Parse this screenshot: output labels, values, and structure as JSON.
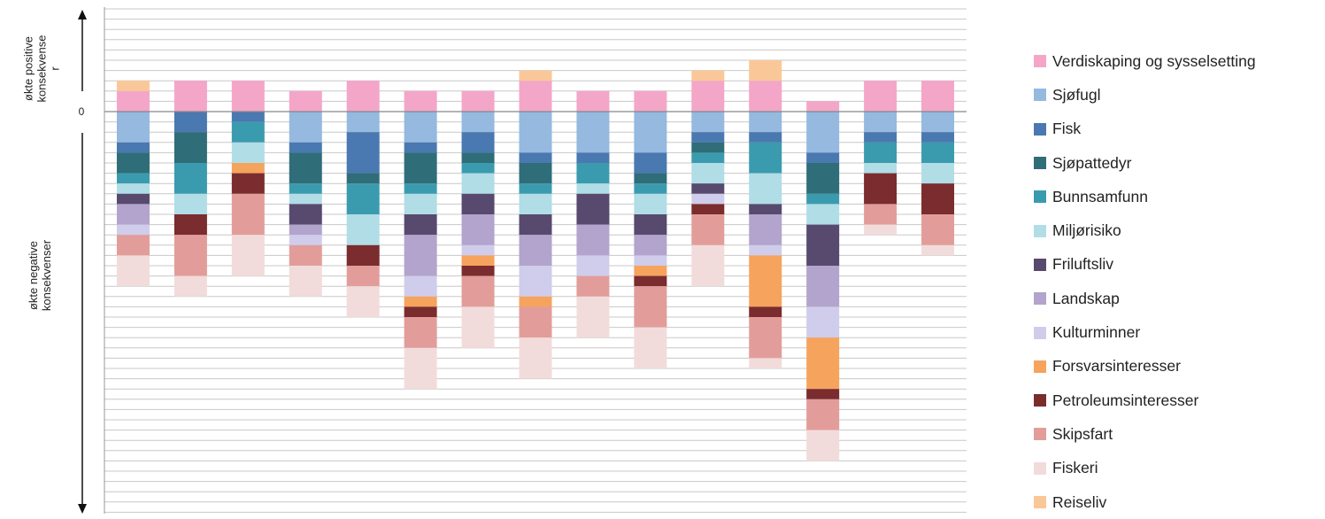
{
  "axis": {
    "positive_label_line1": "økte positive",
    "positive_label_line2": "konsekvense",
    "positive_label_line3": "r",
    "negative_label_line1": "økte negative",
    "negative_label_line2": "konsekvenser"
  },
  "chart_data": {
    "type": "bar",
    "stacked": true,
    "grid": true,
    "legend_position": "right",
    "ylim": [
      -39,
      10
    ],
    "yticks": [
      {
        "value": 0,
        "label": "0"
      }
    ],
    "categories": [
      "",
      "",
      "",
      "",
      "",
      "",
      "",
      "",
      "",
      "",
      "",
      "",
      "",
      "",
      ""
    ],
    "series": [
      {
        "name": "Verdiskaping og sysselsetting",
        "color": "#F4A6C8",
        "values": [
          2,
          3,
          3,
          2,
          3,
          2,
          2,
          3,
          2,
          2,
          3,
          3,
          1,
          3,
          3
        ]
      },
      {
        "name": "Reiseliv",
        "color": "#FAC898",
        "values": [
          1,
          0,
          0,
          0,
          0,
          0,
          0,
          1,
          0,
          0,
          1,
          2,
          0,
          0,
          0
        ]
      },
      {
        "name": "Sjøfugl",
        "color": "#95B9DF",
        "values": [
          -3,
          0,
          0,
          -3,
          -2,
          -3,
          -2,
          -4,
          -4,
          -4,
          -2,
          -2,
          -4,
          -2,
          -2
        ]
      },
      {
        "name": "Fisk",
        "color": "#4A78B0",
        "values": [
          -1,
          -2,
          -1,
          -1,
          -4,
          -1,
          -2,
          -1,
          -1,
          -2,
          -1,
          -1,
          -1,
          -1,
          -1
        ]
      },
      {
        "name": "Sjøpattedyr",
        "color": "#2F6D78",
        "values": [
          -2,
          -3,
          0,
          -3,
          -1,
          -3,
          -1,
          -2,
          0,
          -1,
          -1,
          0,
          -3,
          0,
          0
        ]
      },
      {
        "name": "Bunnsamfunn",
        "color": "#3B9BAE",
        "values": [
          -1,
          -3,
          -2,
          -1,
          -3,
          -1,
          -1,
          -1,
          -2,
          -1,
          -1,
          -3,
          -1,
          -2,
          -2
        ]
      },
      {
        "name": "Miljørisiko",
        "color": "#B0DDE6",
        "values": [
          -1,
          -2,
          -2,
          -1,
          -3,
          -2,
          -2,
          -2,
          -1,
          -2,
          -2,
          -3,
          -2,
          -1,
          -2
        ]
      },
      {
        "name": "Friluftsliv",
        "color": "#574A6E",
        "values": [
          -1,
          0,
          0,
          -2,
          0,
          -2,
          -2,
          -2,
          -3,
          -2,
          -1,
          -1,
          -4,
          0,
          0
        ]
      },
      {
        "name": "Landskap",
        "color": "#B2A4CC",
        "values": [
          -2,
          0,
          0,
          -1,
          0,
          -4,
          -3,
          -3,
          -3,
          -2,
          0,
          -3,
          -4,
          0,
          0
        ]
      },
      {
        "name": "Kulturminner",
        "color": "#CFCDEB",
        "values": [
          -1,
          0,
          0,
          -1,
          0,
          -2,
          -1,
          -3,
          -2,
          -1,
          -1,
          -1,
          -3,
          0,
          0
        ]
      },
      {
        "name": "Forsvarsinteresser",
        "color": "#F6A35E",
        "values": [
          0,
          0,
          -1,
          0,
          0,
          -1,
          -1,
          -1,
          0,
          -1,
          0,
          -5,
          -5,
          0,
          0
        ]
      },
      {
        "name": "Petroleumsinteresser",
        "color": "#7A2C2E",
        "values": [
          0,
          -2,
          -2,
          0,
          -2,
          -1,
          -1,
          0,
          0,
          -1,
          -1,
          -1,
          -1,
          -3,
          -3
        ]
      },
      {
        "name": "Skipsfart",
        "color": "#E29D9A",
        "values": [
          -2,
          -4,
          -4,
          -2,
          -2,
          -3,
          -3,
          -3,
          -2,
          -4,
          -3,
          -4,
          -3,
          -2,
          -3
        ]
      },
      {
        "name": "Fiskeri",
        "color": "#F2DCDB",
        "values": [
          -3,
          -2,
          -4,
          -3,
          -3,
          -4,
          -4,
          -4,
          -4,
          -4,
          -4,
          -1,
          -3,
          -1,
          -1
        ]
      }
    ]
  },
  "legend_order": [
    "Verdiskaping og sysselsetting",
    "Sjøfugl",
    "Fisk",
    "Sjøpattedyr",
    "Bunnsamfunn",
    "Miljørisiko",
    "Friluftsliv",
    "Landskap",
    "Kulturminner",
    "Forsvarsinteresser",
    "Petroleumsinteresser",
    "Skipsfart",
    "Fiskeri",
    "Reiseliv"
  ]
}
